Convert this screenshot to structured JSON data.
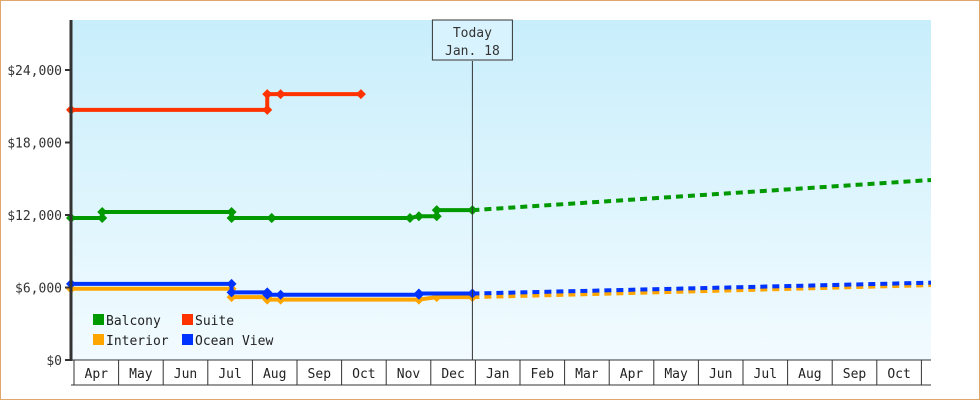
{
  "chart_data": {
    "type": "line",
    "title": "",
    "xlabel": "",
    "ylabel": "",
    "ylim": [
      0,
      28800
    ],
    "y_ticks": [
      "$0",
      "$6,000",
      "$12,000",
      "$18,000",
      "$24,000"
    ],
    "y_tick_values": [
      0,
      6000,
      12000,
      18000,
      24000
    ],
    "x_months": [
      "Apr",
      "May",
      "Jun",
      "Jul",
      "Aug",
      "Sep",
      "Oct",
      "Nov",
      "Dec",
      "Jan",
      "Feb",
      "Mar",
      "Apr",
      "May",
      "Jun",
      "Jul",
      "Aug",
      "Sep",
      "Oct"
    ],
    "today_marker": {
      "line1": "Today",
      "line2": "Jan. 18",
      "month_index": 9.0
    },
    "grid": false,
    "legend_position": "bottom-left inside plot",
    "legend": [
      "Balcony",
      "Suite",
      "Interior",
      "Ocean View"
    ],
    "series": [
      {
        "name": "Balcony",
        "color": "#009900",
        "points_month_index": [
          0.0,
          0.7,
          0.7,
          3.6,
          3.6,
          4.5,
          4.5,
          7.6,
          7.8,
          8.2,
          8.2,
          9.0
        ],
        "values": [
          11750,
          11750,
          12250,
          12250,
          11750,
          11750,
          11750,
          11750,
          11900,
          11900,
          12400,
          12400
        ],
        "forecast_month_index": [
          9.0,
          19.3
        ],
        "forecast_values": [
          12400,
          14900
        ]
      },
      {
        "name": "Suite",
        "color": "#ff3300",
        "points_month_index": [
          0.0,
          4.4,
          4.4,
          4.7,
          6.5
        ],
        "values": [
          20700,
          20700,
          22000,
          22000,
          22000
        ]
      },
      {
        "name": "Interior",
        "color": "#ffa500",
        "points_month_index": [
          0.0,
          3.6,
          3.6,
          4.4,
          4.4,
          4.7,
          7.8,
          8.2,
          9.0
        ],
        "values": [
          5900,
          5900,
          5200,
          5200,
          5000,
          5000,
          5000,
          5200,
          5200
        ],
        "forecast_month_index": [
          9.0,
          19.3
        ],
        "forecast_values": [
          5200,
          6200
        ]
      },
      {
        "name": "Ocean View",
        "color": "#0033ff",
        "points_month_index": [
          0.0,
          3.6,
          3.6,
          4.4,
          4.4,
          4.7,
          7.8,
          7.8,
          9.0
        ],
        "values": [
          6300,
          6300,
          5600,
          5600,
          5400,
          5400,
          5400,
          5500,
          5500
        ],
        "forecast_month_index": [
          9.0,
          19.3
        ],
        "forecast_values": [
          5500,
          6400
        ]
      }
    ]
  },
  "colors": {
    "border": "#e0a868",
    "plot_top": "#c8eefb",
    "plot_bottom": "#f2fbff",
    "axis": "#333333"
  }
}
